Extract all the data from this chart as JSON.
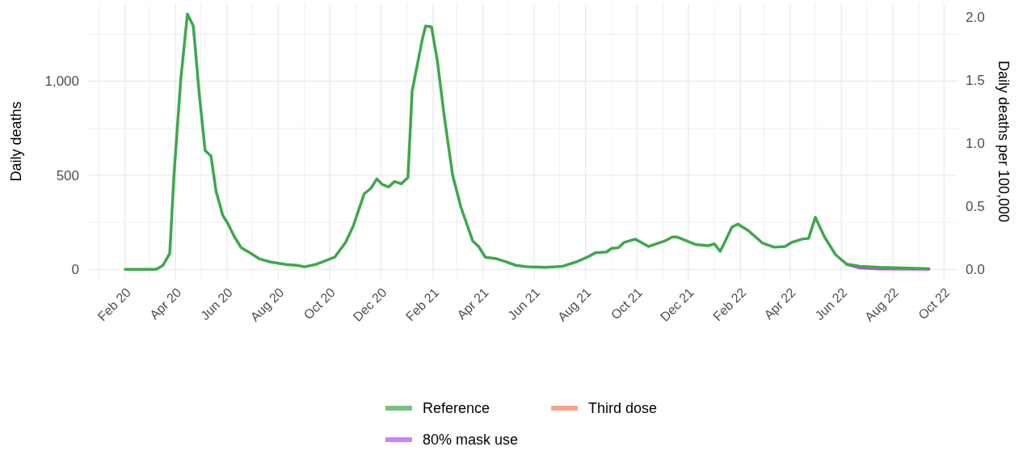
{
  "chart_data": {
    "type": "line",
    "ylabel": "Daily deaths",
    "y2label": "Daily deaths per 100,000",
    "xlim": [
      "2019-12-18",
      "2022-10-17"
    ],
    "ylim": [
      -50,
      1410
    ],
    "y2lim": [
      -0.074,
      2.1
    ],
    "yticks": [
      {
        "value": 0,
        "label": "0"
      },
      {
        "value": 250,
        "label": null
      },
      {
        "value": 500,
        "label": "500"
      },
      {
        "value": 750,
        "label": null
      },
      {
        "value": 1000,
        "label": "1,000"
      },
      {
        "value": 1250,
        "label": null
      }
    ],
    "y2ticks": [
      {
        "value": 0,
        "label": "0.0"
      },
      {
        "value": 0.5,
        "label": "0.5"
      },
      {
        "value": 1,
        "label": "1.0"
      },
      {
        "value": 1.5,
        "label": "1.5"
      },
      {
        "value": 2,
        "label": "2.0"
      }
    ],
    "xticks": [
      {
        "value": "2020-01",
        "label": null
      },
      {
        "value": "2020-02",
        "label": "Feb 20"
      },
      {
        "value": "2020-03",
        "label": null
      },
      {
        "value": "2020-04",
        "label": "Apr 20"
      },
      {
        "value": "2020-05",
        "label": null
      },
      {
        "value": "2020-06",
        "label": "Jun 20"
      },
      {
        "value": "2020-07",
        "label": null
      },
      {
        "value": "2020-08",
        "label": "Aug 20"
      },
      {
        "value": "2020-09",
        "label": null
      },
      {
        "value": "2020-10",
        "label": "Oct 20"
      },
      {
        "value": "2020-11",
        "label": null
      },
      {
        "value": "2020-12",
        "label": "Dec 20"
      },
      {
        "value": "2021-01",
        "label": null
      },
      {
        "value": "2021-02",
        "label": "Feb 21"
      },
      {
        "value": "2021-03",
        "label": null
      },
      {
        "value": "2021-04",
        "label": "Apr 21"
      },
      {
        "value": "2021-05",
        "label": null
      },
      {
        "value": "2021-06",
        "label": "Jun 21"
      },
      {
        "value": "2021-07",
        "label": null
      },
      {
        "value": "2021-08",
        "label": "Aug 21"
      },
      {
        "value": "2021-09",
        "label": null
      },
      {
        "value": "2021-10",
        "label": "Oct 21"
      },
      {
        "value": "2021-11",
        "label": null
      },
      {
        "value": "2021-12",
        "label": "Dec 21"
      },
      {
        "value": "2022-01",
        "label": null
      },
      {
        "value": "2022-02",
        "label": "Feb 22"
      },
      {
        "value": "2022-03",
        "label": null
      },
      {
        "value": "2022-04",
        "label": "Apr 22"
      },
      {
        "value": "2022-05",
        "label": null
      },
      {
        "value": "2022-06",
        "label": "Jun 22"
      },
      {
        "value": "2022-07",
        "label": null
      },
      {
        "value": "2022-08",
        "label": "Aug 22"
      },
      {
        "value": "2022-09",
        "label": null
      },
      {
        "value": "2022-10",
        "label": "Oct 22"
      }
    ],
    "grid": true,
    "legend": "bottom",
    "line_style": "solid",
    "series": [
      {
        "name": "Reference",
        "color": "#3ea84b",
        "x": [
          "2020-02-01",
          "2020-03-09",
          "2020-03-17",
          "2020-03-25",
          "2020-03-30",
          "2020-04-07",
          "2020-04-15",
          "2020-04-22",
          "2020-04-29",
          "2020-05-06",
          "2020-05-13",
          "2020-05-19",
          "2020-05-27",
          "2020-06-02",
          "2020-06-10",
          "2020-06-18",
          "2020-06-29",
          "2020-07-09",
          "2020-07-22",
          "2020-08-10",
          "2020-08-23",
          "2020-09-01",
          "2020-09-14",
          "2020-10-07",
          "2020-10-20",
          "2020-10-29",
          "2020-11-11",
          "2020-11-19",
          "2020-11-26",
          "2020-12-02",
          "2020-12-10",
          "2020-12-17",
          "2020-12-25",
          "2021-01-02",
          "2021-01-07",
          "2021-01-19",
          "2021-01-23",
          "2021-01-30",
          "2021-02-06",
          "2021-02-14",
          "2021-02-24",
          "2021-03-06",
          "2021-03-20",
          "2021-03-27",
          "2021-04-04",
          "2021-04-17",
          "2021-04-27",
          "2021-05-10",
          "2021-05-23",
          "2021-06-15",
          "2021-07-05",
          "2021-07-21",
          "2021-08-03",
          "2021-08-13",
          "2021-08-26",
          "2021-09-01",
          "2021-09-09",
          "2021-09-16",
          "2021-09-29",
          "2021-10-15",
          "2021-11-03",
          "2021-11-12",
          "2021-11-18",
          "2021-12-10",
          "2021-12-25",
          "2022-01-01",
          "2022-01-08",
          "2022-01-14",
          "2022-01-22",
          "2022-01-29",
          "2022-02-11",
          "2022-02-27",
          "2022-03-13",
          "2022-03-26",
          "2022-04-03",
          "2022-04-16",
          "2022-04-23",
          "2022-05-01",
          "2022-05-12",
          "2022-05-25",
          "2022-06-07",
          "2022-06-23",
          "2022-07-16",
          "2022-09-13"
        ],
        "values": [
          0,
          0,
          22,
          85,
          500,
          1005,
          1357,
          1293,
          934,
          632,
          603,
          416,
          287,
          244,
          172,
          115,
          86,
          57,
          40,
          26,
          22,
          14,
          26,
          65,
          144,
          230,
          402,
          431,
          481,
          453,
          438,
          467,
          455,
          488,
          948,
          1221,
          1293,
          1289,
          1106,
          819,
          503,
          330,
          151,
          122,
          65,
          57,
          43,
          22,
          14,
          11,
          17,
          40,
          65,
          89,
          93,
          112,
          115,
          144,
          161,
          122,
          151,
          172,
          172,
          132,
          126,
          136,
          96,
          151,
          225,
          241,
          204,
          141,
          118,
          122,
          144,
          162,
          165,
          277,
          172,
          79,
          29,
          17,
          11,
          4
        ]
      },
      {
        "name": "Third dose",
        "color": "#f07f5a"
      },
      {
        "name": "80% mask use",
        "color": "#b650f0",
        "x": [
          "2022-06-07",
          "2022-06-23",
          "2022-07-16",
          "2022-09-13"
        ],
        "values": [
          27,
          8,
          3,
          1
        ]
      }
    ]
  }
}
